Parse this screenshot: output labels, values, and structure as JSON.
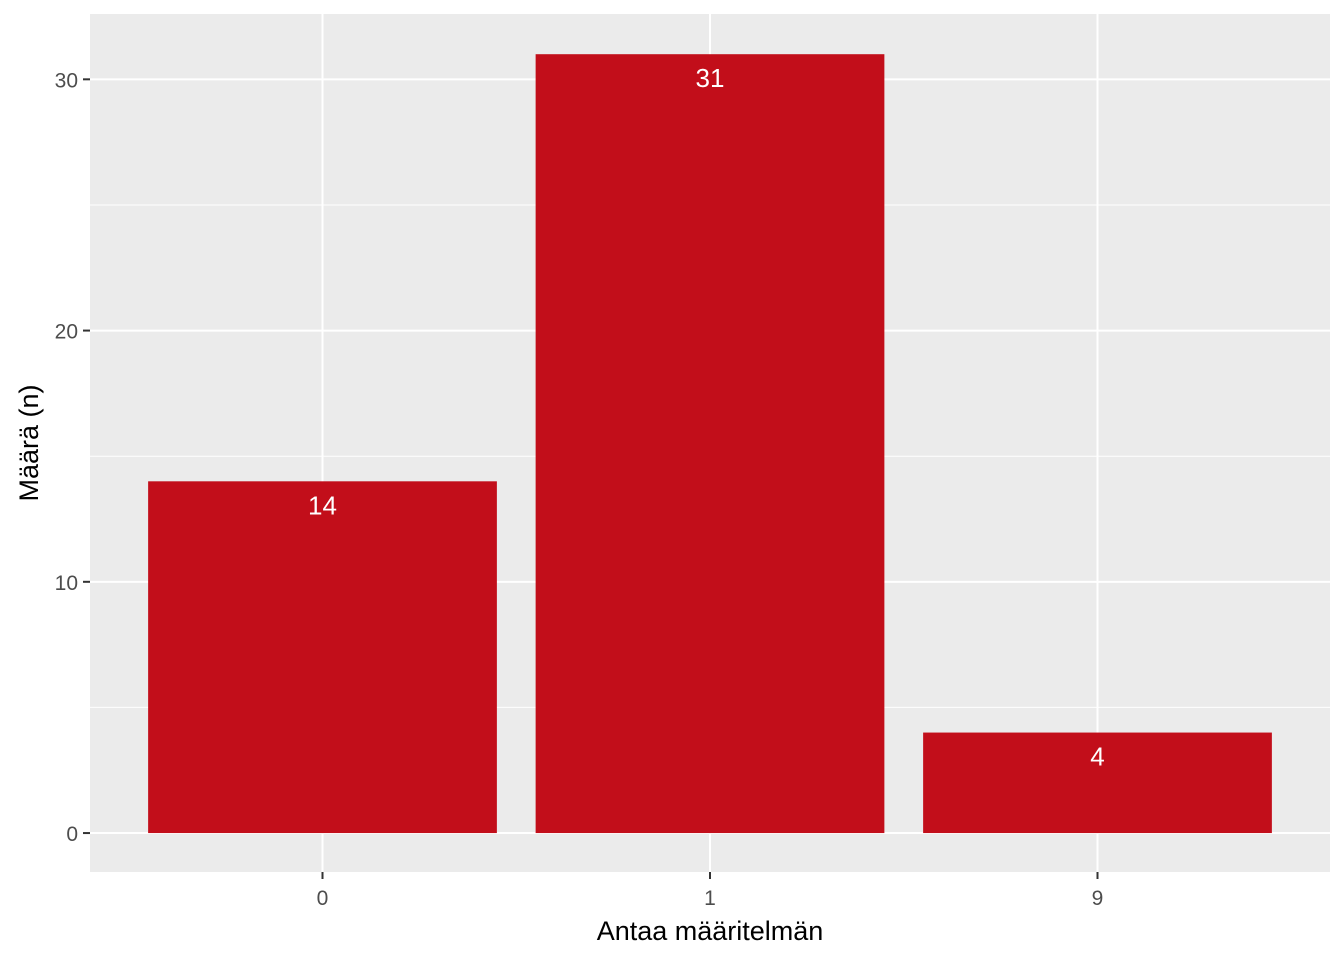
{
  "chart_data": {
    "type": "bar",
    "title": "",
    "xlabel": "Antaa määritelmän",
    "ylabel": "Määrä (n)",
    "categories": [
      "0",
      "1",
      "9"
    ],
    "values": [
      14,
      31,
      4
    ],
    "data_labels": [
      "14",
      "31",
      "4"
    ],
    "ylim": [
      -1.55,
      32.6
    ],
    "yticks": [
      0,
      10,
      20,
      30
    ],
    "ytick_labels": [
      "0",
      "10",
      "20",
      "30"
    ],
    "y_minor_ticks": [
      5,
      15,
      25
    ],
    "grid": true,
    "legend": "none"
  },
  "colors": {
    "bar": "#C20E1A",
    "panel": "#EBEBEB",
    "grid": "#FFFFFF",
    "tick_label": "#4D4D4D",
    "axis_title": "#000000",
    "data_label": "#FFFFFF"
  }
}
